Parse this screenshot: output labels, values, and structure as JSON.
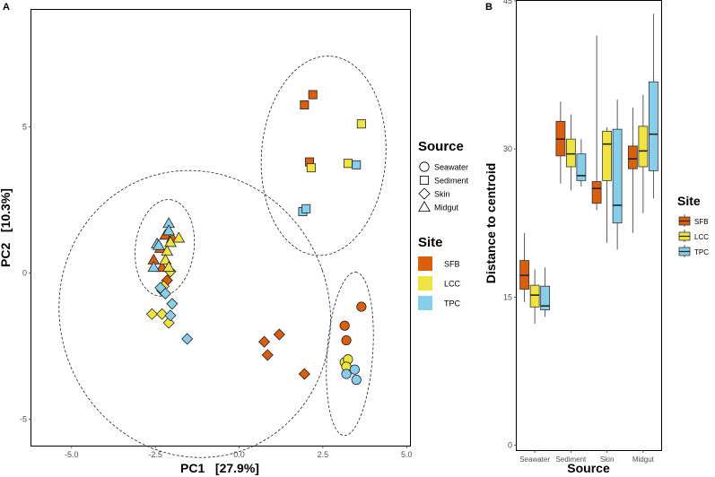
{
  "chart_data": [
    {
      "type": "scatter",
      "panel_label": "A",
      "xlabel": "PC1   [27.9%]",
      "ylabel": "PC2   [10.3%]",
      "xlim": [
        -6.2,
        5.1
      ],
      "ylim": [
        -5.9,
        9.0
      ],
      "x_ticks": [
        -5.0,
        -2.5,
        0.0,
        2.5,
        5.0
      ],
      "x_tick_labels": [
        "-5.0",
        "-2.5",
        "0.0",
        "2.5",
        "5.0"
      ],
      "y_ticks": [
        -5,
        0,
        5
      ],
      "y_tick_labels": [
        "-5",
        "0",
        "5"
      ],
      "grid": false,
      "ellipses": "dashed, one per Source group",
      "legend": {
        "source_title": "Source",
        "source_items": [
          {
            "label": "Seawater",
            "shape": "circle"
          },
          {
            "label": "Sediment",
            "shape": "square"
          },
          {
            "label": "Skin",
            "shape": "diamond"
          },
          {
            "label": "Midgut",
            "shape": "triangle"
          }
        ],
        "site_title": "Site",
        "site_items": [
          {
            "label": "SFB",
            "color": "#D95F0E"
          },
          {
            "label": "LCC",
            "color": "#F0E442"
          },
          {
            "label": "TPC",
            "color": "#87CEEB"
          }
        ],
        "placement": "right"
      },
      "points": [
        {
          "x": 1.95,
          "y": 5.75,
          "source": "Sediment",
          "site": "SFB"
        },
        {
          "x": 2.2,
          "y": 6.1,
          "source": "Sediment",
          "site": "SFB"
        },
        {
          "x": 2.1,
          "y": 3.8,
          "source": "Sediment",
          "site": "SFB"
        },
        {
          "x": 3.65,
          "y": 5.1,
          "source": "Sediment",
          "site": "LCC"
        },
        {
          "x": 3.25,
          "y": 3.75,
          "source": "Sediment",
          "site": "LCC"
        },
        {
          "x": 2.15,
          "y": 3.6,
          "source": "Sediment",
          "site": "LCC"
        },
        {
          "x": 3.5,
          "y": 3.7,
          "source": "Sediment",
          "site": "TPC"
        },
        {
          "x": 1.9,
          "y": 2.1,
          "source": "Sediment",
          "site": "TPC"
        },
        {
          "x": 2.0,
          "y": 2.2,
          "source": "Sediment",
          "site": "TPC"
        },
        {
          "x": 3.65,
          "y": -1.15,
          "source": "Seawater",
          "site": "SFB"
        },
        {
          "x": 3.15,
          "y": -1.8,
          "source": "Seawater",
          "site": "SFB"
        },
        {
          "x": 3.2,
          "y": -2.3,
          "source": "Seawater",
          "site": "SFB"
        },
        {
          "x": 3.15,
          "y": -3.05,
          "source": "Seawater",
          "site": "LCC"
        },
        {
          "x": 3.25,
          "y": -2.95,
          "source": "Seawater",
          "site": "LCC"
        },
        {
          "x": 3.2,
          "y": -3.2,
          "source": "Seawater",
          "site": "LCC"
        },
        {
          "x": 3.45,
          "y": -3.3,
          "source": "Seawater",
          "site": "TPC"
        },
        {
          "x": 3.5,
          "y": -3.65,
          "source": "Seawater",
          "site": "TPC"
        },
        {
          "x": 3.2,
          "y": -3.45,
          "source": "Seawater",
          "site": "TPC"
        },
        {
          "x": 0.75,
          "y": -2.35,
          "source": "Skin",
          "site": "SFB"
        },
        {
          "x": 0.85,
          "y": -2.8,
          "source": "Skin",
          "site": "SFB"
        },
        {
          "x": 1.2,
          "y": -2.1,
          "source": "Skin",
          "site": "SFB"
        },
        {
          "x": 1.95,
          "y": -3.45,
          "source": "Skin",
          "site": "SFB"
        },
        {
          "x": -2.3,
          "y": -0.6,
          "source": "Skin",
          "site": "SFB"
        },
        {
          "x": -2.15,
          "y": -0.25,
          "source": "Skin",
          "site": "SFB"
        },
        {
          "x": -2.6,
          "y": -1.4,
          "source": "Skin",
          "site": "LCC"
        },
        {
          "x": -2.3,
          "y": -1.4,
          "source": "Skin",
          "site": "LCC"
        },
        {
          "x": -2.1,
          "y": -1.7,
          "source": "Skin",
          "site": "LCC"
        },
        {
          "x": -2.05,
          "y": 0.05,
          "source": "Skin",
          "site": "LCC"
        },
        {
          "x": -2.25,
          "y": -0.45,
          "source": "Skin",
          "site": "LCC"
        },
        {
          "x": -1.55,
          "y": -2.25,
          "source": "Skin",
          "site": "TPC"
        },
        {
          "x": -2.0,
          "y": -1.05,
          "source": "Skin",
          "site": "TPC"
        },
        {
          "x": -2.05,
          "y": -1.45,
          "source": "Skin",
          "site": "TPC"
        },
        {
          "x": -2.2,
          "y": -0.7,
          "source": "Skin",
          "site": "TPC"
        },
        {
          "x": -2.35,
          "y": -0.5,
          "source": "Skin",
          "site": "TPC"
        },
        {
          "x": -2.55,
          "y": 0.45,
          "source": "Midgut",
          "site": "SFB"
        },
        {
          "x": -2.35,
          "y": 0.85,
          "source": "Midgut",
          "site": "SFB"
        },
        {
          "x": -2.2,
          "y": 1.3,
          "source": "Midgut",
          "site": "SFB"
        },
        {
          "x": -2.0,
          "y": 1.2,
          "source": "Midgut",
          "site": "SFB"
        },
        {
          "x": -2.3,
          "y": 0.2,
          "source": "Midgut",
          "site": "SFB"
        },
        {
          "x": -1.8,
          "y": 1.2,
          "source": "Midgut",
          "site": "LCC"
        },
        {
          "x": -2.05,
          "y": 1.05,
          "source": "Midgut",
          "site": "LCC"
        },
        {
          "x": -2.15,
          "y": 0.75,
          "source": "Midgut",
          "site": "LCC"
        },
        {
          "x": -2.2,
          "y": 0.45,
          "source": "Midgut",
          "site": "LCC"
        },
        {
          "x": -2.1,
          "y": 0.2,
          "source": "Midgut",
          "site": "LCC"
        },
        {
          "x": -2.1,
          "y": 1.7,
          "source": "Midgut",
          "site": "TPC"
        },
        {
          "x": -2.45,
          "y": 1.0,
          "source": "Midgut",
          "site": "TPC"
        },
        {
          "x": -2.4,
          "y": 0.95,
          "source": "Midgut",
          "site": "TPC"
        },
        {
          "x": -2.55,
          "y": 0.2,
          "source": "Midgut",
          "site": "TPC"
        },
        {
          "x": -2.1,
          "y": 1.45,
          "source": "Midgut",
          "site": "TPC"
        }
      ]
    },
    {
      "type": "box",
      "panel_label": "B",
      "xlabel": "Source",
      "ylabel": "Distance to centroid",
      "categories": [
        "Seawater",
        "Sediment",
        "Skin",
        "Midgut"
      ],
      "ylim": [
        -0.5,
        45.0
      ],
      "y_ticks": [
        0,
        15,
        30,
        45
      ],
      "y_tick_labels": [
        "0",
        "15",
        "30",
        "45"
      ],
      "grid": false,
      "legend": {
        "title": "Site",
        "items": [
          {
            "label": "SFB",
            "color": "#D95F0E"
          },
          {
            "label": "LCC",
            "color": "#F0E442"
          },
          {
            "label": "TPC",
            "color": "#87CEEB"
          }
        ],
        "placement": "right"
      },
      "series": [
        {
          "name": "SFB",
          "values": [
            {
              "category": "Seawater",
              "min": 14.5,
              "q1": 15.8,
              "median": 17.2,
              "q3": 18.7,
              "max": 21.5
            },
            {
              "category": "Sediment",
              "min": 26.5,
              "q1": 29.3,
              "median": 31.0,
              "q3": 32.8,
              "max": 34.8
            },
            {
              "category": "Skin",
              "min": 23.8,
              "q1": 24.5,
              "median": 26.0,
              "q3": 26.7,
              "max": 41.5
            },
            {
              "category": "Midgut",
              "min": 21.5,
              "q1": 28.0,
              "median": 29.0,
              "q3": 30.3,
              "max": 34.2
            }
          ]
        },
        {
          "name": "LCC",
          "values": [
            {
              "category": "Seawater",
              "min": 12.3,
              "q1": 14.0,
              "median": 15.2,
              "q3": 16.2,
              "max": 17.8
            },
            {
              "category": "Sediment",
              "min": 25.8,
              "q1": 28.2,
              "median": 29.5,
              "q3": 31.0,
              "max": 33.5
            },
            {
              "category": "Skin",
              "min": 20.5,
              "q1": 26.8,
              "median": 30.5,
              "q3": 31.8,
              "max": 32.2
            },
            {
              "category": "Midgut",
              "min": 23.5,
              "q1": 28.2,
              "median": 29.8,
              "q3": 32.3,
              "max": 35.5
            }
          ]
        },
        {
          "name": "TPC",
          "values": [
            {
              "category": "Seawater",
              "min": 13.0,
              "q1": 13.7,
              "median": 14.1,
              "q3": 16.1,
              "max": 18.0
            },
            {
              "category": "Sediment",
              "min": 26.2,
              "q1": 26.8,
              "median": 27.3,
              "q3": 29.5,
              "max": 31.0
            },
            {
              "category": "Skin",
              "min": 19.8,
              "q1": 22.5,
              "median": 24.3,
              "q3": 32.0,
              "max": 35.0
            },
            {
              "category": "Midgut",
              "min": 25.0,
              "q1": 27.8,
              "median": 31.5,
              "q3": 36.8,
              "max": 43.7
            }
          ]
        }
      ]
    }
  ]
}
